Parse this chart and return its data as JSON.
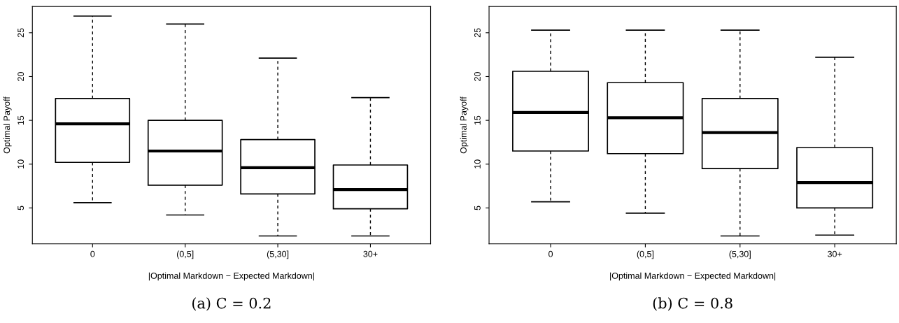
{
  "chart_data": [
    {
      "type": "box",
      "xlabel": "|Optimal Markdown − Expected Markdown|",
      "ylabel": "Optimal Payoff",
      "categories": [
        "0",
        "(0,5]",
        "(5,30]",
        "30+"
      ],
      "ylim": [
        0.9,
        28
      ],
      "yticks": [
        5,
        10,
        15,
        20,
        25
      ],
      "grid": false,
      "annotations": [
        "(a) C = 0.2"
      ],
      "boxes": [
        {
          "low": 5.6,
          "q1": 10.2,
          "median": 14.6,
          "q3": 17.5,
          "high": 26.9
        },
        {
          "low": 4.2,
          "q1": 7.6,
          "median": 11.5,
          "q3": 15.0,
          "high": 26.0
        },
        {
          "low": 1.8,
          "q1": 6.6,
          "median": 9.6,
          "q3": 12.8,
          "high": 22.1
        },
        {
          "low": 1.8,
          "q1": 4.9,
          "median": 7.1,
          "q3": 9.9,
          "high": 17.6
        }
      ]
    },
    {
      "type": "box",
      "xlabel": "|Optimal Markdown − Expected Markdown|",
      "ylabel": "Optimal Payoff",
      "categories": [
        "0",
        "(0,5]",
        "(5,30]",
        "30+"
      ],
      "ylim": [
        0.9,
        28
      ],
      "yticks": [
        5,
        10,
        15,
        20,
        25
      ],
      "grid": false,
      "annotations": [
        "(b) C = 0.8"
      ],
      "boxes": [
        {
          "low": 5.7,
          "q1": 11.5,
          "median": 15.9,
          "q3": 20.6,
          "high": 25.3
        },
        {
          "low": 4.4,
          "q1": 11.2,
          "median": 15.3,
          "q3": 19.3,
          "high": 25.3
        },
        {
          "low": 1.8,
          "q1": 9.5,
          "median": 13.6,
          "q3": 17.5,
          "high": 25.3
        },
        {
          "low": 1.9,
          "q1": 5.0,
          "median": 7.9,
          "q3": 11.9,
          "high": 22.2
        }
      ]
    }
  ]
}
